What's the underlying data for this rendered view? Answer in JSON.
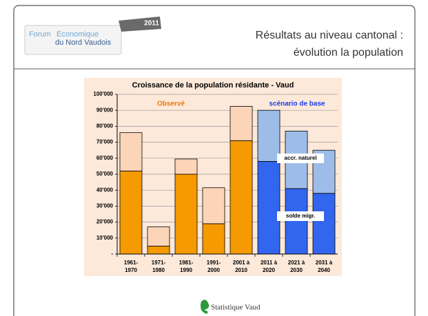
{
  "header": {
    "logo": {
      "line1a": "Forum",
      "line1b": "Economique",
      "line2": "du Nord Vaudois",
      "edition": "2011"
    },
    "title_line1": "Résultats au niveau cantonal :",
    "title_line2": "évolution la population"
  },
  "chart_data": {
    "type": "stacked_bar",
    "title": "Croissance de la population résidante - Vaud",
    "categories": [
      "1961-\n1970",
      "1971-\n1980",
      "1981-\n1990",
      "1991-\n2000",
      "2001 à\n2010",
      "2011 à\n2020",
      "2021 à\n2030",
      "2031 à\n2040"
    ],
    "series": [
      {
        "name": "solde migr.",
        "colors": [
          "#f59a00",
          "#f59a00",
          "#f59a00",
          "#f59a00",
          "#f59a00",
          "#3366ee",
          "#3366ee",
          "#3366ee"
        ],
        "values": [
          52000,
          5000,
          50000,
          19000,
          71000,
          58000,
          41000,
          38000
        ]
      },
      {
        "name": "accr. naturel",
        "colors": [
          "#fcd5b8",
          "#fcd5b8",
          "#fcd5b8",
          "#fcd5b8",
          "#fcd5b8",
          "#9dbde8",
          "#9dbde8",
          "#9dbde8"
        ],
        "values": [
          24000,
          12000,
          9500,
          22500,
          21500,
          32000,
          36000,
          27000
        ]
      }
    ],
    "annotations": [
      {
        "text": "Observé",
        "color": "#f07800"
      },
      {
        "text": "scénario de base",
        "color": "#1a3ee8"
      }
    ],
    "ylim": [
      0,
      100000
    ],
    "yticks": [
      {
        "value": 0,
        "label": "-"
      },
      {
        "value": 10000,
        "label": "10'000"
      },
      {
        "value": 20000,
        "label": "20'000"
      },
      {
        "value": 30000,
        "label": "30'000"
      },
      {
        "value": 40000,
        "label": "40'000"
      },
      {
        "value": 50000,
        "label": "50'000"
      },
      {
        "value": 60000,
        "label": "60'000"
      },
      {
        "value": 70000,
        "label": "70'000"
      },
      {
        "value": 80000,
        "label": "80'000"
      },
      {
        "value": 90000,
        "label": "90'000"
      },
      {
        "value": 100000,
        "label": "100'000"
      }
    ],
    "grid": true,
    "background": "#fde9da"
  },
  "footer": {
    "text": "Statistique Vaud"
  }
}
